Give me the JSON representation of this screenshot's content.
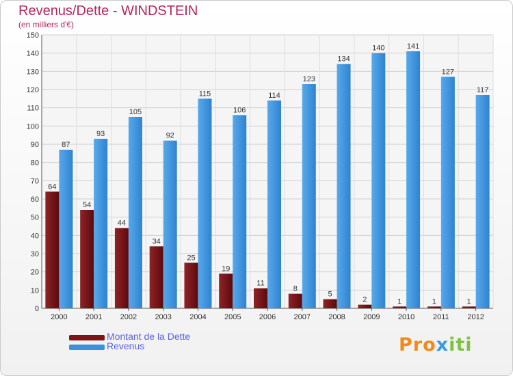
{
  "chart_data": {
    "type": "bar",
    "title": "Revenus/Dette - WINDSTEIN",
    "subtitle": "(en milliers d'€)",
    "categories": [
      "2000",
      "2001",
      "2002",
      "2003",
      "2004",
      "2005",
      "2006",
      "2007",
      "2008",
      "2009",
      "2010",
      "2011",
      "2012"
    ],
    "series": [
      {
        "name": "Montant de la Dette",
        "color": "#7a1518",
        "values": [
          64,
          54,
          44,
          34,
          25,
          19,
          11,
          8,
          5,
          2,
          1,
          1,
          1
        ]
      },
      {
        "name": "Revenus",
        "color": "#3a91dc",
        "values": [
          87,
          93,
          105,
          92,
          115,
          106,
          114,
          123,
          134,
          140,
          141,
          127,
          117
        ]
      }
    ],
    "ylim": [
      0,
      150
    ],
    "yticks": [
      0,
      10,
      20,
      30,
      40,
      50,
      60,
      70,
      80,
      90,
      100,
      110,
      120,
      130,
      140,
      150
    ],
    "grid": true,
    "legend_position": "bottom-left"
  },
  "logo": {
    "parts": [
      "Pro",
      "x",
      "iti"
    ]
  }
}
